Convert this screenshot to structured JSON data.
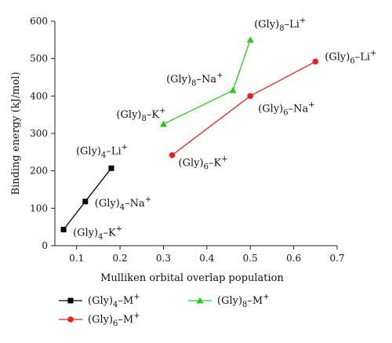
{
  "chart_data": {
    "type": "line",
    "title": "",
    "xlabel": "Mulliken orbital overlap population",
    "ylabel": "Binding energy (kJ/mol)",
    "xlim": [
      0.05,
      0.7
    ],
    "ylim": [
      0,
      600
    ],
    "x_ticks": [
      "0.1",
      "0.2",
      "0.3",
      "0.4",
      "0.5",
      "0.6",
      "0.7"
    ],
    "y_ticks": [
      "0",
      "100",
      "200",
      "300",
      "400",
      "500",
      "600"
    ],
    "grid": false,
    "legend_position": "bottom",
    "series": [
      {
        "name": "(Gly)4-M+",
        "color": "#000000",
        "marker": "square",
        "points": [
          {
            "x": 0.07,
            "y": 43,
            "label": "(Gly)4-K+"
          },
          {
            "x": 0.12,
            "y": 118,
            "label": "(Gly)4-Na+"
          },
          {
            "x": 0.18,
            "y": 207,
            "label": "(Gly)4-Li+"
          }
        ]
      },
      {
        "name": "(Gly)6-M+",
        "color": "#e8211f",
        "marker": "circle",
        "points": [
          {
            "x": 0.32,
            "y": 242,
            "label": "(Gly)6-K+"
          },
          {
            "x": 0.5,
            "y": 400,
            "label": "(Gly)6-Na+"
          },
          {
            "x": 0.65,
            "y": 492,
            "label": "(Gly)6-Li+"
          }
        ]
      },
      {
        "name": "(Gly)8-M+",
        "color": "#22cc1e",
        "marker": "triangle",
        "points": [
          {
            "x": 0.3,
            "y": 325,
            "label": "(Gly)8-K+"
          },
          {
            "x": 0.46,
            "y": 415,
            "label": "(Gly)8-Na+"
          },
          {
            "x": 0.5,
            "y": 550,
            "label": "(Gly)8-Li+"
          }
        ]
      }
    ]
  }
}
